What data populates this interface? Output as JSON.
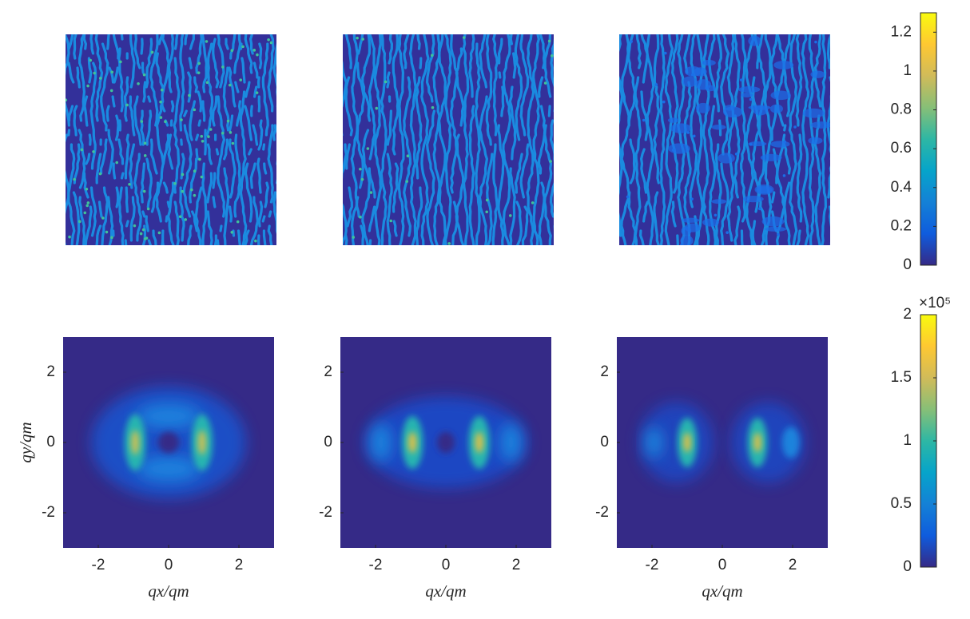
{
  "chart_data": [
    {
      "type": "heatmap",
      "pattern": "ring",
      "xlim": [
        -3,
        3
      ],
      "ylim": [
        -3,
        3
      ],
      "xticks": [
        -2,
        0,
        2
      ],
      "yticks": [
        -2,
        0,
        2
      ],
      "xlabel": "qx/qm",
      "ylabel": "qy/qm"
    },
    {
      "type": "heatmap",
      "pattern": "lobes",
      "xlim": [
        -3,
        3
      ],
      "ylim": [
        -3,
        3
      ],
      "xticks": [
        -2,
        0,
        2
      ],
      "yticks": [
        -2,
        0,
        2
      ],
      "xlabel": "qx/qm"
    },
    {
      "type": "heatmap",
      "pattern": "split",
      "xlim": [
        -3,
        3
      ],
      "ylim": [
        -3,
        3
      ],
      "xticks": [
        -2,
        0,
        2
      ],
      "yticks": [
        -2,
        0,
        2
      ],
      "xlabel": "qx/qm"
    },
    {
      "type": "colorbar",
      "ylim": [
        0,
        1.3
      ],
      "yticks": [
        0,
        0.2,
        0.4,
        0.6,
        0.8,
        1,
        1.2
      ],
      "colormap": [
        "#352a87",
        "#0f5cdd",
        "#1481d6",
        "#06a4ca",
        "#2eb7a4",
        "#87bf77",
        "#d1bb59",
        "#fec832",
        "#f9fb0e"
      ]
    },
    {
      "type": "colorbar",
      "ylim": [
        0,
        200000
      ],
      "yticks": [
        0,
        {
          "value": 50000,
          "label": "0.5"
        },
        {
          "value": 100000,
          "label": "1"
        },
        {
          "value": 150000,
          "label": "1.5"
        },
        {
          "value": 200000,
          "label": "2"
        }
      ],
      "exponent": "×10⁵",
      "colormap": [
        "#352a87",
        "#0f5cdd",
        "#1481d6",
        "#06a4ca",
        "#2eb7a4",
        "#87bf77",
        "#d1bb59",
        "#fec832",
        "#f9fb0e"
      ]
    }
  ]
}
